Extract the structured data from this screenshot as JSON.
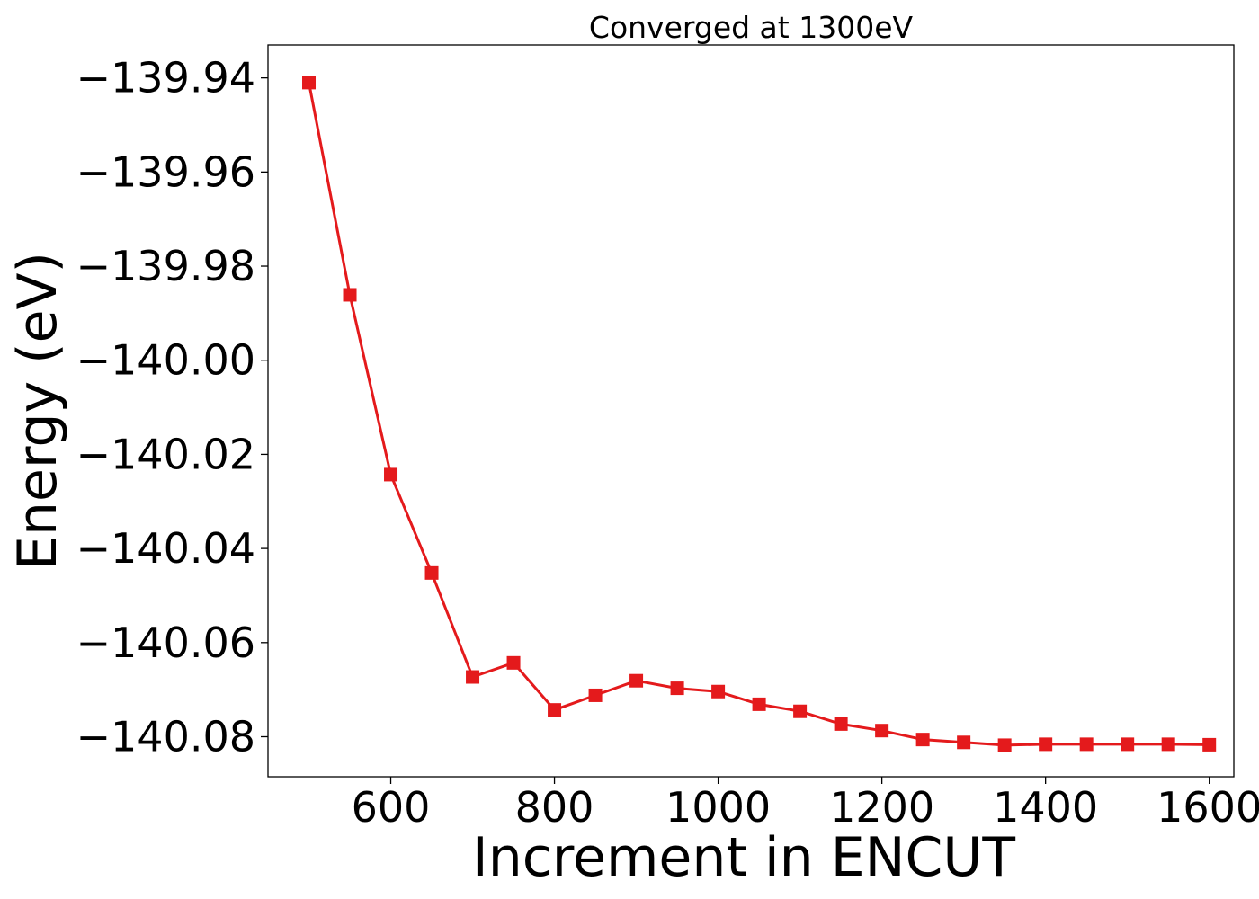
{
  "chart_data": {
    "type": "line",
    "title": "Converged at 1300eV",
    "xlabel": "Increment in ENCUT",
    "ylabel": "Energy (eV)",
    "xlim": [
      450,
      1630
    ],
    "ylim": [
      -140.0885,
      -139.933
    ],
    "xticks": [
      600,
      800,
      1000,
      1200,
      1400,
      1600
    ],
    "xtick_labels": [
      "600",
      "800",
      "1000",
      "1200",
      "1400",
      "1600"
    ],
    "yticks": [
      -139.94,
      -139.96,
      -139.98,
      -140.0,
      -140.02,
      -140.04,
      -140.06,
      -140.08
    ],
    "ytick_labels": [
      "−139.94",
      "−139.96",
      "−139.98",
      "−140.00",
      "−140.02",
      "−140.04",
      "−140.06",
      "−140.08"
    ],
    "grid": false,
    "marker": "square",
    "x": [
      500,
      550,
      600,
      650,
      700,
      750,
      800,
      850,
      900,
      950,
      1000,
      1050,
      1100,
      1150,
      1200,
      1250,
      1300,
      1350,
      1400,
      1450,
      1500,
      1550,
      1600
    ],
    "series": [
      {
        "color": "#e41a1c",
        "values": [
          -139.941,
          -139.9861,
          -140.0243,
          -140.0452,
          -140.0673,
          -140.0643,
          -140.0743,
          -140.0712,
          -140.0681,
          -140.0697,
          -140.0704,
          -140.0731,
          -140.0746,
          -140.0773,
          -140.0787,
          -140.0806,
          -140.0812,
          -140.0818,
          -140.0816,
          -140.0816,
          -140.0816,
          -140.0816,
          -140.0817
        ]
      }
    ]
  }
}
